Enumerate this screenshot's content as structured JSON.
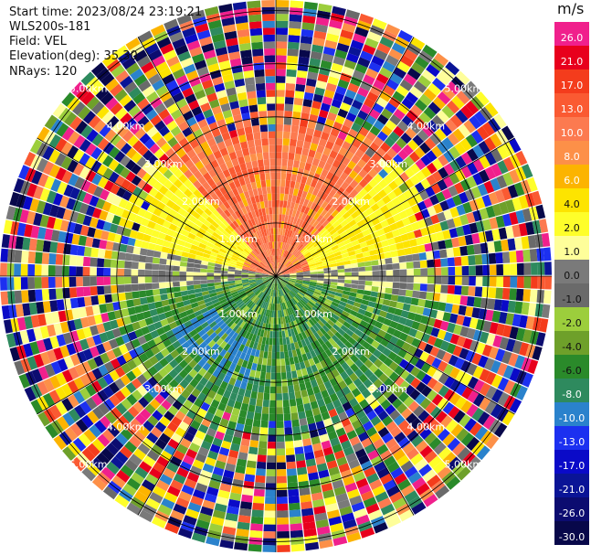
{
  "header": {
    "start_time": "Start time: 2023/08/24 23:19:21",
    "instrument": "WLS200s-181",
    "field": "Field: VEL",
    "elevation": "Elevation(deg): 35.30",
    "nrays": "NRays: 120"
  },
  "colorbar": {
    "unit": "m/s",
    "bins": [
      {
        "label": "26.0",
        "color": "#f0208c"
      },
      {
        "label": "21.0",
        "color": "#e8001c"
      },
      {
        "label": "17.0",
        "color": "#f43c1c"
      },
      {
        "label": "13.0",
        "color": "#fa5a32"
      },
      {
        "label": "10.0",
        "color": "#fc7a50"
      },
      {
        "label": "8.0",
        "color": "#fd9048"
      },
      {
        "label": "6.0",
        "color": "#fcb400"
      },
      {
        "label": "4.0",
        "color": "#fde400"
      },
      {
        "label": "2.0",
        "color": "#fefe2a"
      },
      {
        "label": "1.0",
        "color": "#fefe9a"
      },
      {
        "label": "0.0",
        "color": "#7a7a7a"
      },
      {
        "label": "-1.0",
        "color": "#6a6a6a"
      },
      {
        "label": "-2.0",
        "color": "#9cce3c"
      },
      {
        "label": "-4.0",
        "color": "#6ea02a"
      },
      {
        "label": "-6.0",
        "color": "#2a8a2a"
      },
      {
        "label": "-8.0",
        "color": "#2e8a5e"
      },
      {
        "label": "-10.0",
        "color": "#2a82cc"
      },
      {
        "label": "-13.0",
        "color": "#1c30f0"
      },
      {
        "label": "-17.0",
        "color": "#0a0ac8"
      },
      {
        "label": "-21.0",
        "color": "#0a1496"
      },
      {
        "label": "-26.0",
        "color": "#0c0c70"
      },
      {
        "label": "-30.0",
        "color": "#08084a"
      }
    ]
  },
  "chart_data": {
    "type": "polar",
    "field": "VEL",
    "n_rays": 120,
    "elevation_deg": 35.3,
    "range_rings_km": [
      1.0,
      2.0,
      3.0,
      4.0,
      5.0
    ],
    "range_ring_labels": [
      "1.00km",
      "2.00km",
      "3.00km",
      "4.00km",
      "5.00km"
    ],
    "spoke_angles_deg": [
      0,
      30,
      60,
      90,
      120,
      150,
      180,
      210,
      240,
      270,
      300,
      330
    ],
    "max_range_km": 5.2,
    "near_field_pattern": {
      "upper_sector": "positive velocities (orange/red, ~8 to 13 m/s) with yellow (~2 to 4 m/s) at east and west",
      "lower_sector": "negative velocities (green, ~-2 to -8 m/s) with a blue patch (~-10 m/s) to the south-west",
      "horizontal_band": "near zero (grey) along east-west axis",
      "outer_ranges": "noisy mixed colors beyond ~3 km"
    }
  }
}
